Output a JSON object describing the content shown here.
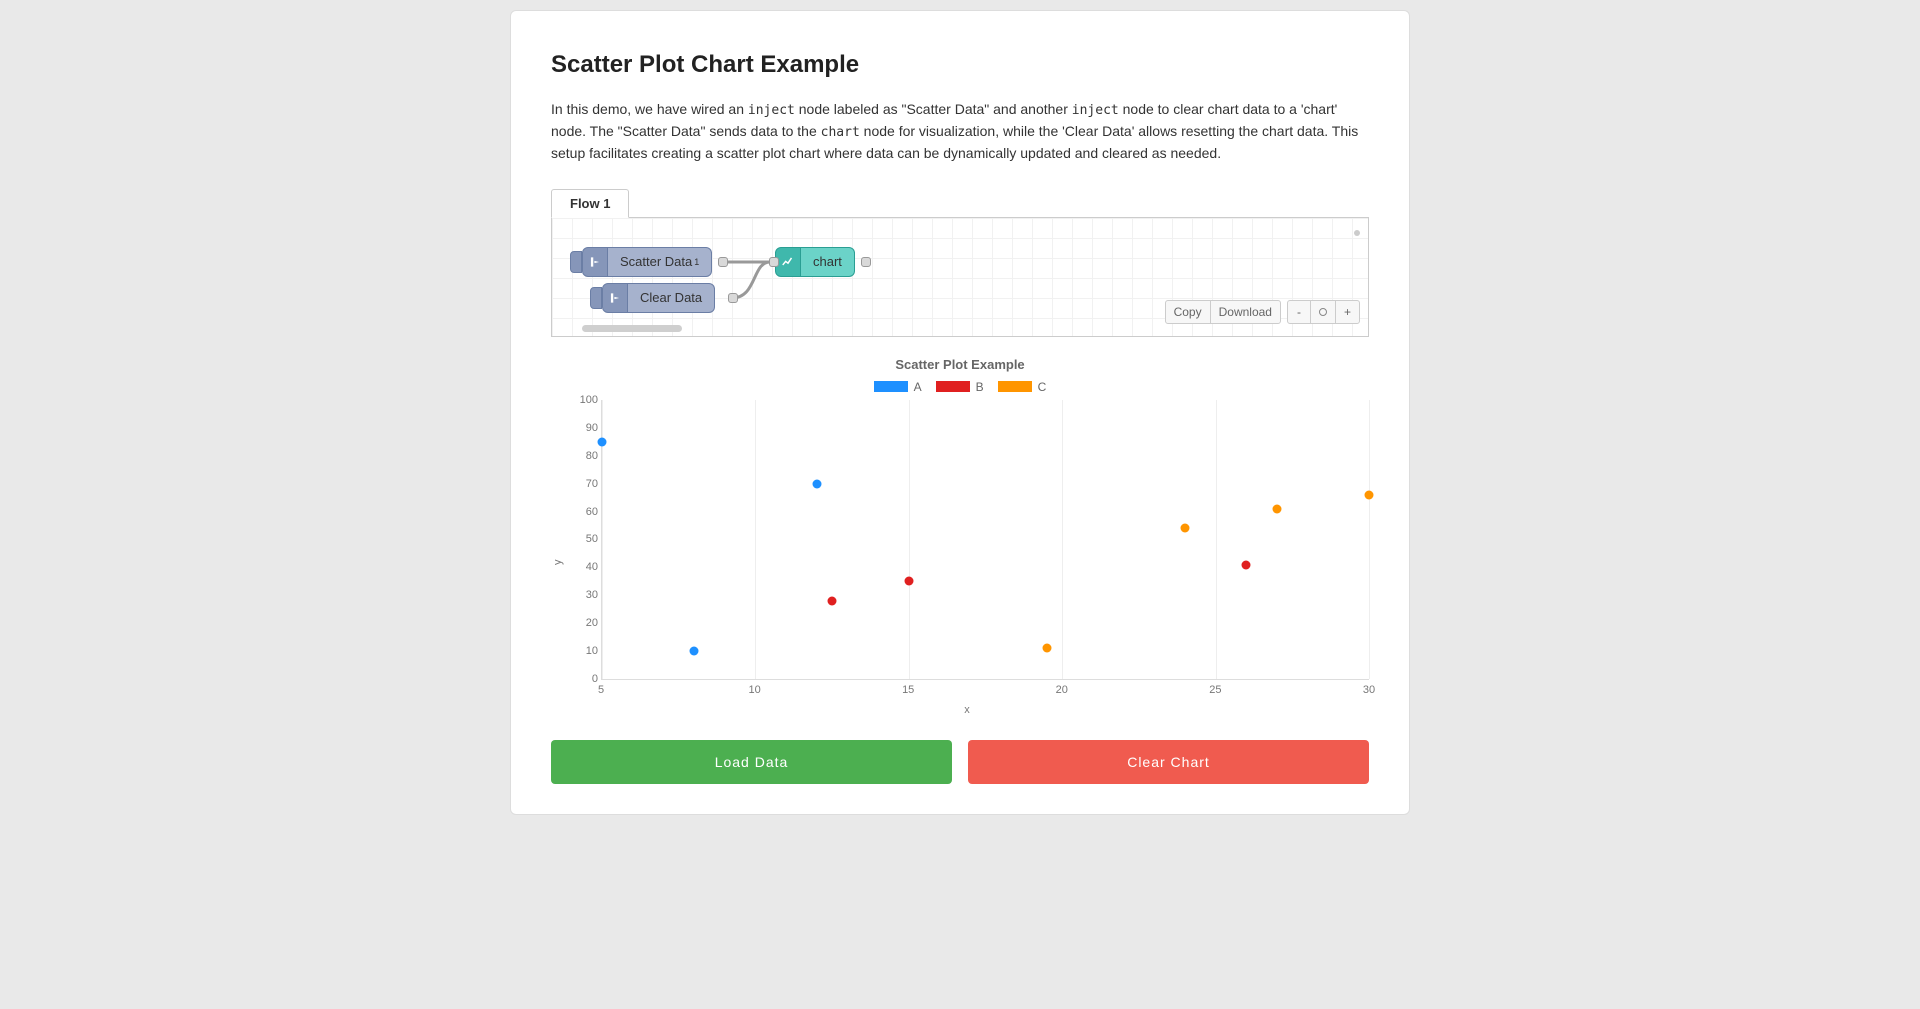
{
  "title": "Scatter Plot Chart Example",
  "description_parts": [
    "In this demo, we have wired an ",
    " node labeled as \"Scatter Data\" and another ",
    " node to clear chart data to a 'chart' node. The \"Scatter Data\" sends data to the ",
    " node for visualization, while the 'Clear Data' allows resetting the chart data. This setup facilitates creating a scatter plot chart where data can be dynamically updated and cleared as needed."
  ],
  "description_codes": [
    "inject",
    "inject",
    "chart"
  ],
  "flow": {
    "tab_label": "Flow 1",
    "nodes": {
      "scatter_data": {
        "label": "Scatter Data",
        "sup": "1"
      },
      "clear_data": {
        "label": "Clear Data"
      },
      "chart": {
        "label": "chart"
      }
    },
    "toolbar": {
      "copy": "Copy",
      "download": "Download",
      "minus": "-",
      "reset": "○",
      "plus": "+"
    }
  },
  "chart": {
    "type": "scatter",
    "title": "Scatter Plot Example",
    "x_axis_label": "x",
    "y_axis_label": "y",
    "xlim": [
      5,
      30
    ],
    "ylim": [
      0,
      100
    ],
    "xticks": [
      5,
      10,
      15,
      20,
      25,
      30
    ],
    "yticks": [
      0,
      10,
      20,
      30,
      40,
      50,
      60,
      70,
      80,
      90,
      100
    ],
    "grid_color": "#eeeeee",
    "point_radius": 4.5,
    "legend": [
      {
        "label": "A",
        "color": "#1e90ff"
      },
      {
        "label": "B",
        "color": "#e02020"
      },
      {
        "label": "C",
        "color": "#ff9500"
      }
    ],
    "series": {
      "A": {
        "color": "#1e90ff",
        "points": [
          {
            "x": 5,
            "y": 85
          },
          {
            "x": 8,
            "y": 10
          },
          {
            "x": 12,
            "y": 70
          }
        ]
      },
      "B": {
        "color": "#e02020",
        "points": [
          {
            "x": 12.5,
            "y": 28
          },
          {
            "x": 15,
            "y": 35
          },
          {
            "x": 26,
            "y": 41
          }
        ]
      },
      "C": {
        "color": "#ff9500",
        "points": [
          {
            "x": 19.5,
            "y": 11
          },
          {
            "x": 24,
            "y": 54
          },
          {
            "x": 27,
            "y": 61
          },
          {
            "x": 30,
            "y": 66
          }
        ]
      }
    }
  },
  "buttons": {
    "load": "Load Data",
    "clear": "Clear Chart"
  },
  "colors": {
    "btn_green": "#4caf50",
    "btn_red": "#f05b4f"
  }
}
